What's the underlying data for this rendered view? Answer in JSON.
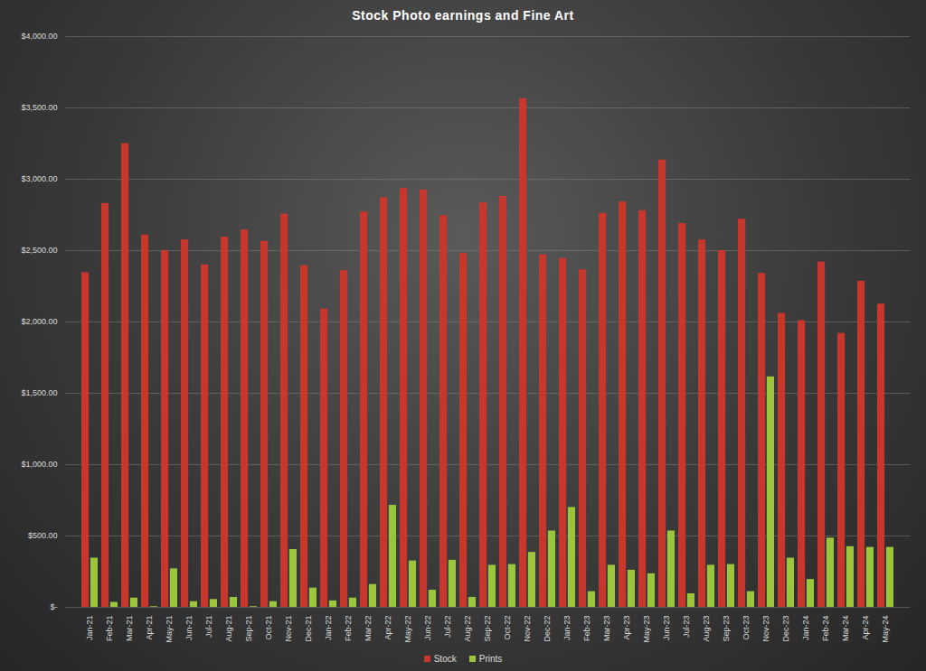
{
  "chart_data": {
    "type": "bar",
    "title": "Stock Photo earnings and Fine Art",
    "categories": [
      "Jan-21",
      "Feb-21",
      "Mar-21",
      "Apr-21",
      "May-21",
      "Jun-21",
      "Jul-21",
      "Aug-21",
      "Sep-21",
      "Oct-21",
      "Nov-21",
      "Dec-21",
      "Jan-22",
      "Feb-22",
      "Mar-22",
      "Apr-22",
      "May-22",
      "Jun-22",
      "Jul-22",
      "Aug-22",
      "Sep-22",
      "Oct-22",
      "Nov-22",
      "Dec-22",
      "Jan-23",
      "Feb-23",
      "Mar-23",
      "Apr-23",
      "May-23",
      "Jun-23",
      "Jul-23",
      "Aug-23",
      "Sep-23",
      "Oct-23",
      "Nov-23",
      "Dec-23",
      "Jan-24",
      "Feb-24",
      "Mar-24",
      "Apr-24",
      "May-24"
    ],
    "series": [
      {
        "name": "Stock",
        "color": "#c8372d",
        "values": [
          2345,
          2830,
          3250,
          2610,
          2500,
          2575,
          2400,
          2595,
          2645,
          2565,
          2755,
          2395,
          2090,
          2360,
          2770,
          2870,
          2935,
          2925,
          2745,
          2480,
          2835,
          2880,
          3565,
          2470,
          2445,
          2365,
          2760,
          2840,
          2780,
          3135,
          2690,
          2575,
          2500,
          2720,
          2340,
          2060,
          2010,
          2420,
          1920,
          2285,
          2125
        ]
      },
      {
        "name": "Prints",
        "color": "#9bc53d",
        "values": [
          345,
          35,
          65,
          5,
          270,
          40,
          55,
          70,
          5,
          40,
          405,
          135,
          45,
          65,
          160,
          715,
          325,
          120,
          330,
          70,
          295,
          300,
          385,
          535,
          700,
          110,
          295,
          260,
          235,
          535,
          95,
          295,
          300,
          110,
          1615,
          345,
          195,
          485,
          425,
          420,
          420
        ]
      }
    ],
    "ylim": [
      0,
      4000
    ],
    "yticks": [
      {
        "value": 0,
        "label": "$-"
      },
      {
        "value": 500,
        "label": "$500.00"
      },
      {
        "value": 1000,
        "label": "$1,000.00"
      },
      {
        "value": 1500,
        "label": "$1,500.00"
      },
      {
        "value": 2000,
        "label": "$2,000.00"
      },
      {
        "value": 2500,
        "label": "$2,500.00"
      },
      {
        "value": 3000,
        "label": "$3,000.00"
      },
      {
        "value": 3500,
        "label": "$3,500.00"
      },
      {
        "value": 4000,
        "label": "$4,000.00"
      }
    ],
    "grid": true,
    "legend": "bottom"
  }
}
